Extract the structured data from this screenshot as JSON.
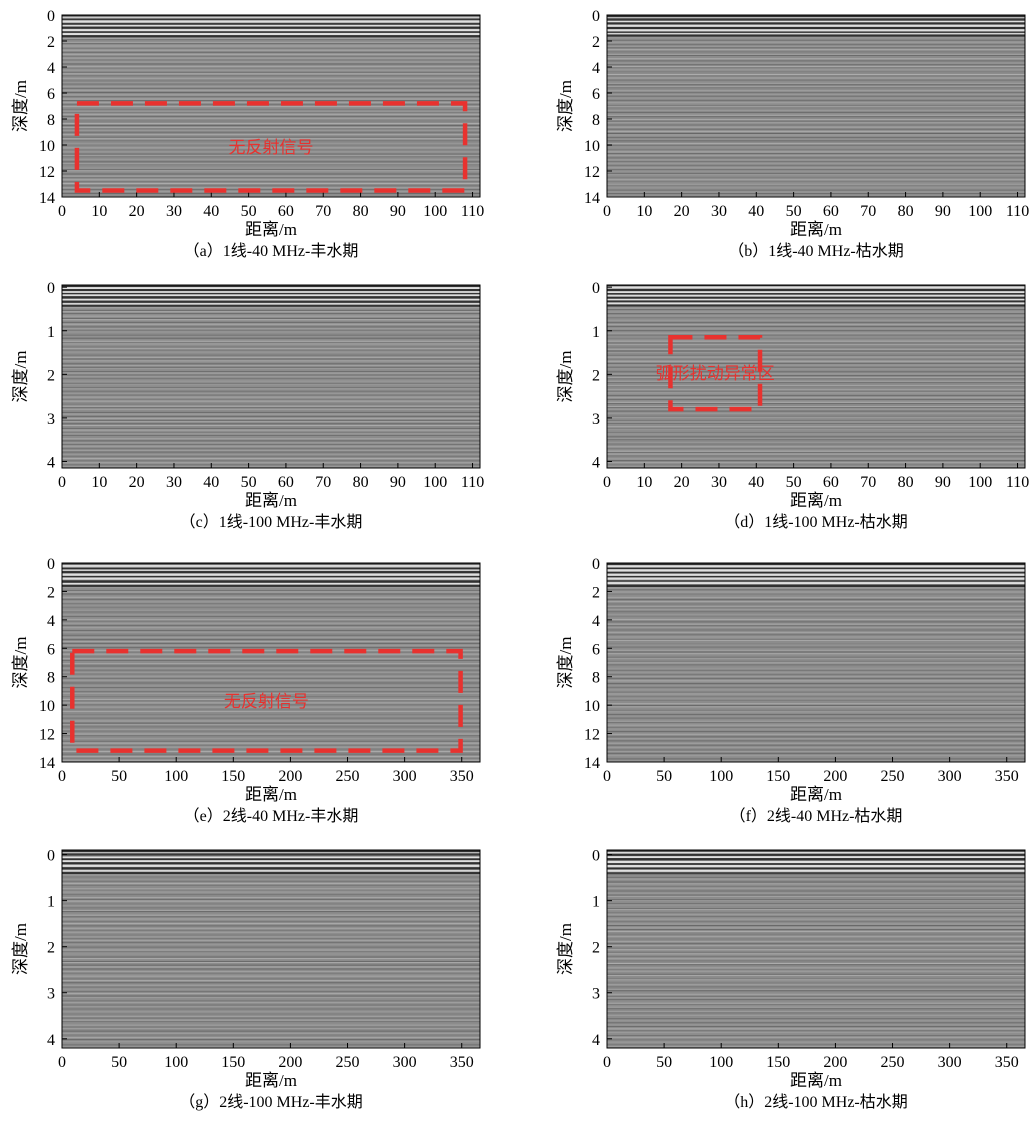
{
  "chart_data": [
    {
      "type": "image",
      "caption": "（a）1线-40 MHz-丰水期",
      "xlabel": "距离/m",
      "ylabel": "深度/m",
      "xlim": [
        0,
        112
      ],
      "ylim": [
        0,
        14
      ],
      "inverted_y": true,
      "xticks": [
        0,
        10,
        20,
        30,
        40,
        50,
        60,
        70,
        80,
        90,
        100,
        110
      ],
      "yticks": [
        0,
        2,
        4,
        6,
        8,
        10,
        12,
        14
      ],
      "annotations": [
        {
          "text": "无反射信号",
          "x": [
            4,
            108
          ],
          "y": [
            6.8,
            13.5
          ],
          "color": "#e8322f"
        }
      ]
    },
    {
      "type": "image",
      "caption": "（b）1线-40 MHz-枯水期",
      "xlabel": "距离/m",
      "ylabel": "深度/m",
      "xlim": [
        0,
        112
      ],
      "ylim": [
        0,
        14
      ],
      "inverted_y": true,
      "xticks": [
        0,
        10,
        20,
        30,
        40,
        50,
        60,
        70,
        80,
        90,
        100,
        110
      ],
      "yticks": [
        0,
        2,
        4,
        6,
        8,
        10,
        12,
        14
      ],
      "annotations": []
    },
    {
      "type": "image",
      "caption": "（c）1线-100 MHz-丰水期",
      "xlabel": "距离/m",
      "ylabel": "深度/m",
      "xlim": [
        0,
        112
      ],
      "ylim": [
        -0.05,
        4.15
      ],
      "inverted_y": true,
      "xticks": [
        0,
        10,
        20,
        30,
        40,
        50,
        60,
        70,
        80,
        90,
        100,
        110
      ],
      "yticks": [
        0,
        1,
        2,
        3,
        4
      ],
      "annotations": []
    },
    {
      "type": "image",
      "caption": "（d）1线-100 MHz-枯水期",
      "xlabel": "距离/m",
      "ylabel": "深度/m",
      "xlim": [
        0,
        112
      ],
      "ylim": [
        -0.05,
        4.15
      ],
      "inverted_y": true,
      "xticks": [
        0,
        10,
        20,
        30,
        40,
        50,
        60,
        70,
        80,
        90,
        100,
        110
      ],
      "yticks": [
        0,
        1,
        2,
        3,
        4
      ],
      "annotations": [
        {
          "text": "弧形扰动异常区",
          "x": [
            17,
            41
          ],
          "y": [
            1.15,
            2.8
          ],
          "color": "#e8322f"
        }
      ]
    },
    {
      "type": "image",
      "caption": "（e）2线-40 MHz-丰水期",
      "xlabel": "距离/m",
      "ylabel": "深度/m",
      "xlim": [
        0,
        366
      ],
      "ylim": [
        0,
        14
      ],
      "inverted_y": true,
      "xticks": [
        0,
        50,
        100,
        150,
        200,
        250,
        300,
        350
      ],
      "yticks": [
        0,
        2,
        4,
        6,
        8,
        10,
        12,
        14
      ],
      "annotations": [
        {
          "text": "无反射信号",
          "x": [
            9,
            349
          ],
          "y": [
            6.2,
            13.2
          ],
          "color": "#e8322f"
        }
      ]
    },
    {
      "type": "image",
      "caption": "（f）2线-40 MHz-枯水期",
      "xlabel": "距离/m",
      "ylabel": "深度/m",
      "xlim": [
        0,
        366
      ],
      "ylim": [
        0,
        14
      ],
      "inverted_y": true,
      "xticks": [
        0,
        50,
        100,
        150,
        200,
        250,
        300,
        350
      ],
      "yticks": [
        0,
        2,
        4,
        6,
        8,
        10,
        12,
        14
      ],
      "annotations": []
    },
    {
      "type": "image",
      "caption": "（g）2线-100 MHz-丰水期",
      "xlabel": "距离/m",
      "ylabel": "深度/m",
      "xlim": [
        0,
        366
      ],
      "ylim": [
        -0.1,
        4.2
      ],
      "inverted_y": true,
      "xticks": [
        0,
        50,
        100,
        150,
        200,
        250,
        300,
        350
      ],
      "yticks": [
        0,
        1,
        2,
        3,
        4
      ],
      "annotations": []
    },
    {
      "type": "image",
      "caption": "（h）2线-100 MHz-枯水期",
      "xlabel": "距离/m",
      "ylabel": "深度/m",
      "xlim": [
        0,
        366
      ],
      "ylim": [
        -0.1,
        4.2
      ],
      "inverted_y": true,
      "xticks": [
        0,
        50,
        100,
        150,
        200,
        250,
        300,
        350
      ],
      "yticks": [
        0,
        1,
        2,
        3,
        4
      ],
      "annotations": []
    }
  ]
}
